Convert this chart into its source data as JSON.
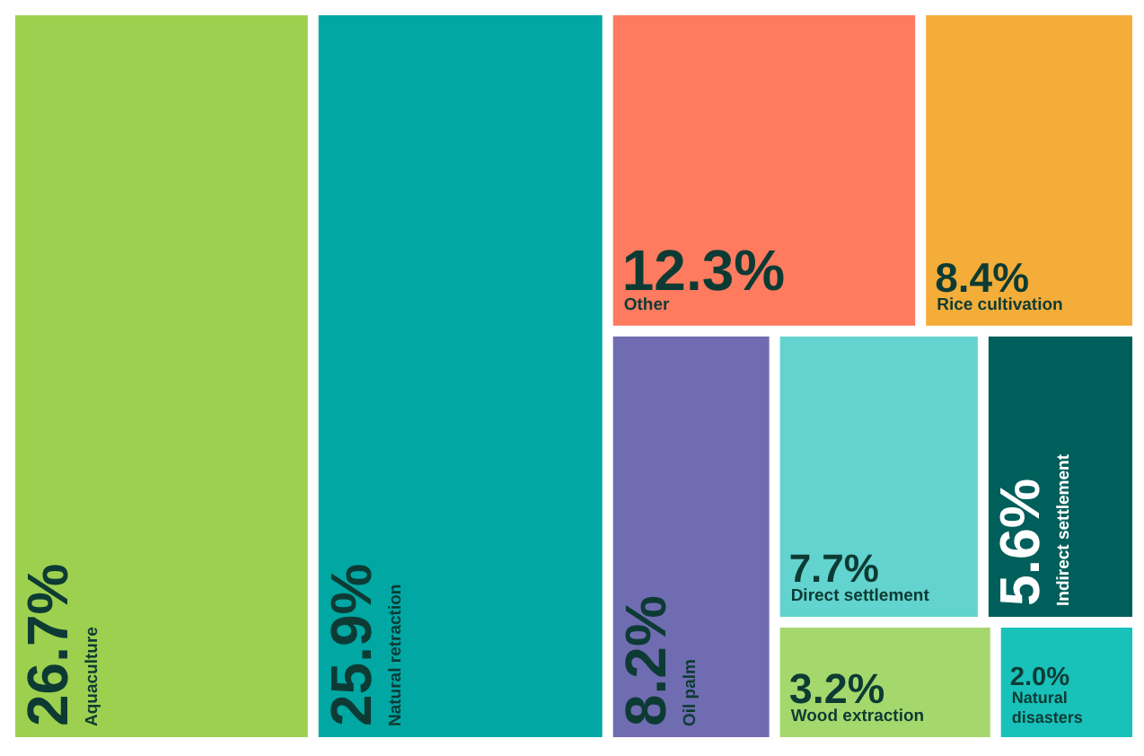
{
  "chart_data": {
    "type": "other",
    "categories": [
      "Aquaculture",
      "Natural retraction",
      "Other",
      "Rice cultivation",
      "Oil palm",
      "Direct settlement",
      "Indirect settlement",
      "Wood extraction",
      "Natural disasters"
    ],
    "values": [
      26.7,
      25.9,
      12.3,
      8.4,
      8.2,
      7.7,
      5.6,
      3.2,
      2.0
    ],
    "value_labels": [
      "26.7%",
      "25.9%",
      "12.3%",
      "8.4%",
      "8.2%",
      "7.7%",
      "5.6%",
      "3.2%",
      "2.0%"
    ],
    "colors": [
      "#9dd04f",
      "#00a7a3",
      "#ff7b5f",
      "#f3ad38",
      "#706cb1",
      "#62d3ce",
      "#005f5b",
      "#a5d86c",
      "#18c1ba"
    ]
  }
}
